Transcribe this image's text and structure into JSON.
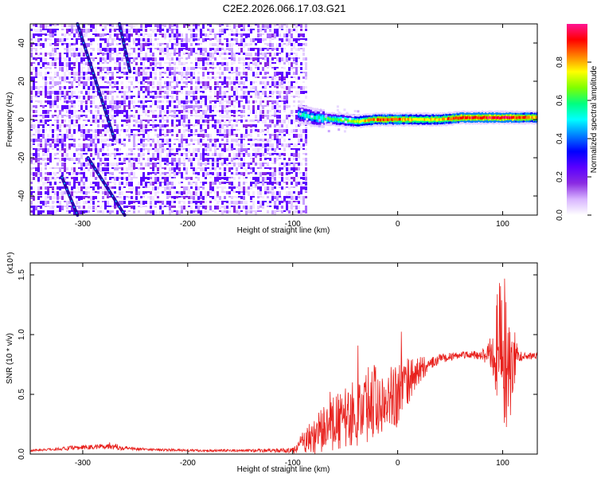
{
  "title": "C2E2.2026.066.17.03.G21",
  "chart_data": [
    {
      "type": "heatmap",
      "xlabel": "Height of straight line (km)",
      "ylabel": "Frequency (Hz)",
      "xlim": [
        -350,
        133
      ],
      "ylim": [
        -50,
        50
      ],
      "xticks": [
        -300,
        -200,
        -100,
        0,
        100
      ],
      "yticks": [
        -40,
        -20,
        0,
        20,
        40
      ],
      "colorbar": {
        "label": "Normalized spectral amplitude",
        "range": [
          0,
          1
        ],
        "ticks": [
          "0.0",
          "0.2",
          "0.4",
          "0.6",
          "0.8"
        ],
        "colors": [
          "#ffffff",
          "#d8b4ff",
          "#8a2be2",
          "#5a00ff",
          "#0000ff",
          "#0080ff",
          "#00ffff",
          "#00ff80",
          "#80ff00",
          "#ffff00",
          "#ff8000",
          "#ff0000",
          "#ff1493"
        ]
      },
      "noise_region_x": [
        -350,
        -88
      ],
      "streaks": [
        {
          "x": [
            -305,
            -270
          ],
          "y": [
            50,
            -10
          ]
        },
        {
          "x": [
            -265,
            -255
          ],
          "y": [
            50,
            25
          ]
        },
        {
          "x": [
            -295,
            -260
          ],
          "y": [
            -20,
            -50
          ]
        },
        {
          "x": [
            -320,
            -305
          ],
          "y": [
            -30,
            -50
          ]
        }
      ],
      "signal_band": {
        "x": [
          -95,
          -80,
          -60,
          -40,
          -20,
          0,
          20,
          40,
          60,
          80,
          100,
          120,
          133
        ],
        "center_hz": [
          3,
          1,
          0,
          -1,
          0,
          0,
          0,
          0,
          1,
          1,
          1,
          1,
          1
        ],
        "amplitude": [
          0.5,
          0.55,
          0.6,
          0.7,
          0.85,
          0.85,
          0.75,
          0.8,
          0.9,
          0.9,
          0.95,
          0.85,
          0.8
        ]
      }
    },
    {
      "type": "line",
      "xlabel": "Height of straight line (km)",
      "ylabel": "SNR (10 * v/v)",
      "y_multiplier": "(x10⁴)",
      "xlim": [
        -350,
        133
      ],
      "ylim": [
        0,
        1.6
      ],
      "xticks": [
        -300,
        -200,
        -100,
        0,
        100
      ],
      "yticks": [
        "0.0",
        "0.5",
        "1.0",
        "1.5"
      ],
      "color": "#e8201c",
      "x": [
        -350,
        -330,
        -310,
        -290,
        -275,
        -260,
        -240,
        -200,
        -150,
        -100,
        -90,
        -80,
        -70,
        -60,
        -50,
        -40,
        -30,
        -20,
        -10,
        0,
        10,
        20,
        30,
        40,
        60,
        80,
        90,
        95,
        100,
        105,
        110,
        115,
        120,
        133
      ],
      "y": [
        0.03,
        0.04,
        0.05,
        0.06,
        0.07,
        0.05,
        0.04,
        0.03,
        0.03,
        0.03,
        0.1,
        0.15,
        0.2,
        0.25,
        0.3,
        0.35,
        0.4,
        0.45,
        0.5,
        0.5,
        0.6,
        0.7,
        0.75,
        0.8,
        0.83,
        0.83,
        0.85,
        0.9,
        0.85,
        0.75,
        0.8,
        0.82,
        0.82,
        0.82
      ],
      "spread": [
        0.01,
        0.01,
        0.02,
        0.02,
        0.03,
        0.02,
        0.01,
        0.01,
        0.01,
        0.02,
        0.1,
        0.15,
        0.2,
        0.25,
        0.25,
        0.3,
        0.3,
        0.35,
        0.25,
        0.3,
        0.2,
        0.12,
        0.06,
        0.04,
        0.03,
        0.04,
        0.15,
        0.5,
        0.7,
        0.6,
        0.3,
        0.05,
        0.03,
        0.03
      ]
    }
  ]
}
